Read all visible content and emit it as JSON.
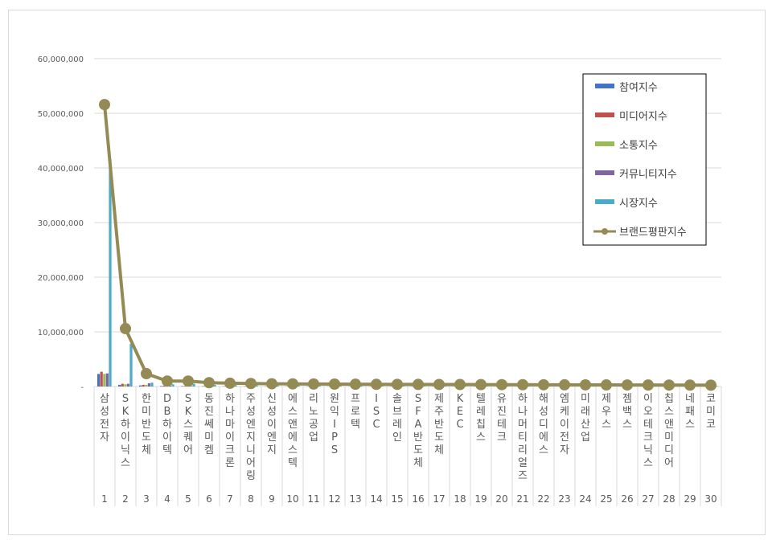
{
  "chart_data": {
    "type": "bar+line",
    "title": "",
    "xlabel": "",
    "ylabel": "",
    "ylim": [
      0,
      60000000
    ],
    "yticks": [
      "-",
      "10,000,000",
      "20,000,000",
      "30,000,000",
      "40,000,000",
      "50,000,000",
      "60,000,000"
    ],
    "grid": true,
    "legend_placement": "top-right",
    "categories": [
      "삼성전자",
      "SK하이닉스",
      "한미반도체",
      "DB하이텍",
      "SK스퀘어",
      "동진쎄미켐",
      "하나마이크론",
      "주성엔지니어링",
      "신성이엔지",
      "에스앤에스텍",
      "리노공업",
      "원익IPS",
      "프로텍",
      "ISC",
      "솔브레인",
      "SFA반도체",
      "제주반도체",
      "KEC",
      "텔레칩스",
      "유진테크",
      "하나머티리얼즈",
      "해성디에스",
      "엠케이전자",
      "미래산업",
      "제우스",
      "젬백스",
      "이오테크닉스",
      "칩스앤미디어",
      "네패스",
      "코미코"
    ],
    "ranks": [
      "1",
      "2",
      "3",
      "4",
      "5",
      "6",
      "7",
      "8",
      "9",
      "10",
      "11",
      "12",
      "13",
      "14",
      "15",
      "16",
      "17",
      "18",
      "19",
      "20",
      "21",
      "22",
      "23",
      "24",
      "25",
      "26",
      "27",
      "28",
      "29",
      "30"
    ],
    "series": [
      {
        "name": "참여지수",
        "kind": "bar",
        "color": "#4472c4",
        "values": [
          2300000,
          300000,
          200000,
          100000,
          80000,
          60000,
          50000,
          50000,
          40000,
          40000,
          40000,
          40000,
          30000,
          30000,
          30000,
          30000,
          30000,
          30000,
          30000,
          20000,
          20000,
          20000,
          20000,
          20000,
          20000,
          20000,
          20000,
          20000,
          20000,
          20000
        ]
      },
      {
        "name": "미디어지수",
        "kind": "bar",
        "color": "#c0504d",
        "values": [
          2700000,
          500000,
          300000,
          150000,
          100000,
          80000,
          70000,
          60000,
          50000,
          50000,
          50000,
          50000,
          40000,
          40000,
          40000,
          40000,
          40000,
          40000,
          40000,
          30000,
          30000,
          30000,
          30000,
          30000,
          30000,
          30000,
          30000,
          30000,
          30000,
          30000
        ]
      },
      {
        "name": "소통지수",
        "kind": "bar",
        "color": "#9bbb59",
        "values": [
          2300000,
          400000,
          300000,
          100000,
          80000,
          60000,
          50000,
          50000,
          40000,
          40000,
          40000,
          40000,
          30000,
          30000,
          30000,
          30000,
          30000,
          30000,
          30000,
          20000,
          20000,
          20000,
          20000,
          20000,
          20000,
          20000,
          20000,
          20000,
          20000,
          20000
        ]
      },
      {
        "name": "커뮤니티지수",
        "kind": "bar",
        "color": "#8064a2",
        "values": [
          2400000,
          500000,
          600000,
          150000,
          100000,
          80000,
          70000,
          60000,
          50000,
          50000,
          50000,
          50000,
          40000,
          40000,
          40000,
          40000,
          40000,
          40000,
          40000,
          30000,
          30000,
          30000,
          30000,
          30000,
          30000,
          30000,
          30000,
          30000,
          30000,
          30000
        ]
      },
      {
        "name": "시장지수",
        "kind": "bar",
        "color": "#4bacc6",
        "values": [
          41600000,
          7800000,
          700000,
          400000,
          500000,
          300000,
          250000,
          250000,
          200000,
          200000,
          200000,
          200000,
          150000,
          150000,
          150000,
          150000,
          150000,
          150000,
          150000,
          120000,
          120000,
          120000,
          120000,
          120000,
          100000,
          100000,
          100000,
          100000,
          100000,
          100000
        ]
      },
      {
        "name": "브랜드평판지수",
        "kind": "line",
        "color": "#948a54",
        "values": [
          51600000,
          10600000,
          2350000,
          1000000,
          1000000,
          700000,
          600000,
          550000,
          500000,
          480000,
          460000,
          440000,
          420000,
          400000,
          390000,
          380000,
          370000,
          360000,
          350000,
          340000,
          330000,
          320000,
          310000,
          300000,
          290000,
          280000,
          270000,
          260000,
          250000,
          240000
        ]
      }
    ]
  }
}
